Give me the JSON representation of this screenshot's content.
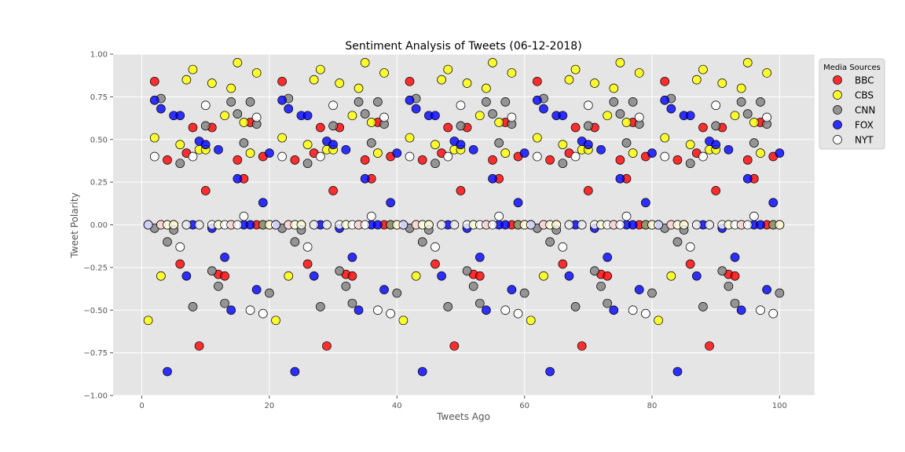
{
  "chart_data": {
    "type": "scatter",
    "title": "Sentiment Analysis of Tweets (06-12-2018)",
    "xlabel": "Tweets Ago",
    "ylabel": "Tweet Polarity",
    "xlim": [
      -4.5,
      105.5
    ],
    "ylim": [
      -1.0,
      1.0
    ],
    "xticks": [
      0,
      20,
      40,
      60,
      80,
      100
    ],
    "xtick_labels": [
      "0",
      "20",
      "40",
      "60",
      "80",
      "100"
    ],
    "yticks": [
      -1.0,
      -0.75,
      -0.5,
      -0.25,
      0.0,
      0.25,
      0.5,
      0.75,
      1.0
    ],
    "ytick_labels": [
      "−1.00",
      "−0.75",
      "−0.50",
      "−0.25",
      "0.00",
      "0.25",
      "0.50",
      "0.75",
      "1.00"
    ],
    "grid": true,
    "background": "#e5e5e5",
    "legend": {
      "title": "Media Sources",
      "position": "outside-top-right"
    },
    "series": [
      {
        "name": "BBC",
        "color": "#ff0000",
        "y": [
          0,
          0.84,
          0,
          0.38,
          0,
          -0.23,
          0.42,
          0.57,
          -0.71,
          0.2,
          0.57,
          -0.29,
          -0.3,
          0,
          0.38,
          0.27,
          0.6,
          0,
          0.4,
          0,
          0,
          0.84,
          0,
          0.38,
          0,
          -0.23,
          0.42,
          0.57,
          -0.71,
          0.2,
          0.57,
          -0.29,
          -0.3,
          0,
          0.38,
          0.27,
          0.6,
          0,
          0.4,
          0,
          0,
          0.84,
          0,
          0.38,
          0,
          -0.23,
          0.42,
          0.57,
          -0.71,
          0.2,
          0.57,
          -0.29,
          -0.3,
          0,
          0.38,
          0.27,
          0.6,
          0,
          0.4,
          0,
          0,
          0.84,
          0,
          0.38,
          0,
          -0.23,
          0.42,
          0.57,
          -0.71,
          0.2,
          0.57,
          -0.29,
          -0.3,
          0,
          0.38,
          0.27,
          0.6,
          0,
          0.4,
          0,
          0,
          0.84,
          0,
          0.38,
          0,
          -0.23,
          0.42,
          0.57,
          -0.71,
          0.2,
          0.57,
          -0.29,
          -0.3,
          0,
          0.38,
          0.27,
          0.6,
          0,
          0.4,
          0
        ]
      },
      {
        "name": "CBS",
        "color": "#ffff00",
        "y": [
          -0.56,
          0.51,
          -0.3,
          0,
          0,
          0.47,
          0.85,
          0.91,
          0.44,
          0.44,
          0.83,
          0,
          0.64,
          0.8,
          0.95,
          0.6,
          0.42,
          0.89,
          0,
          0,
          -0.56,
          0.51,
          -0.3,
          0,
          0,
          0.47,
          0.85,
          0.91,
          0.44,
          0.44,
          0.83,
          0,
          0.64,
          0.8,
          0.95,
          0.6,
          0.42,
          0.89,
          0,
          0,
          -0.56,
          0.51,
          -0.3,
          0,
          0,
          0.47,
          0.85,
          0.91,
          0.44,
          0.44,
          0.83,
          0,
          0.64,
          0.8,
          0.95,
          0.6,
          0.42,
          0.89,
          0,
          0,
          -0.56,
          0.51,
          -0.3,
          0,
          0,
          0.47,
          0.85,
          0.91,
          0.44,
          0.44,
          0.83,
          0,
          0.64,
          0.8,
          0.95,
          0.6,
          0.42,
          0.89,
          0,
          0,
          -0.56,
          0.51,
          -0.3,
          0,
          0,
          0.47,
          0.85,
          0.91,
          0.44,
          0.44,
          0.83,
          0,
          0.64,
          0.8,
          0.95,
          0.6,
          0.42,
          0.89,
          0,
          0
        ]
      },
      {
        "name": "CNN",
        "color": "#808080",
        "y": [
          0,
          -0.02,
          0.74,
          -0.1,
          -0.03,
          0.36,
          0,
          -0.48,
          0,
          0.58,
          -0.27,
          -0.36,
          -0.46,
          0.72,
          0.65,
          0.48,
          0.72,
          0.59,
          0,
          -0.4,
          0,
          -0.02,
          0.74,
          -0.1,
          -0.03,
          0.36,
          0,
          -0.48,
          0,
          0.58,
          -0.27,
          -0.36,
          -0.46,
          0.72,
          0.65,
          0.48,
          0.72,
          0.59,
          0,
          -0.4,
          0,
          -0.02,
          0.74,
          -0.1,
          -0.03,
          0.36,
          0,
          -0.48,
          0,
          0.58,
          -0.27,
          -0.36,
          -0.46,
          0.72,
          0.65,
          0.48,
          0.72,
          0.59,
          0,
          -0.4,
          0,
          -0.02,
          0.74,
          -0.1,
          -0.03,
          0.36,
          0,
          -0.48,
          0,
          0.58,
          -0.27,
          -0.36,
          -0.46,
          0.72,
          0.65,
          0.48,
          0.72,
          0.59,
          0,
          -0.4,
          0,
          -0.02,
          0.74,
          -0.1,
          -0.03,
          0.36,
          0,
          -0.48,
          0,
          0.58,
          -0.27,
          -0.36,
          -0.46,
          0.72,
          0.65,
          0.48,
          0.72,
          0.59,
          0,
          -0.4
        ]
      },
      {
        "name": "FOX",
        "color": "#0000ff",
        "y": [
          0,
          0.73,
          0.68,
          -0.86,
          0.64,
          0.64,
          -0.3,
          0,
          0.49,
          0.47,
          -0.02,
          0.44,
          -0.19,
          -0.5,
          0.27,
          0,
          0,
          -0.38,
          0.13,
          0.42,
          0,
          0.73,
          0.68,
          -0.86,
          0.64,
          0.64,
          -0.3,
          0,
          0.49,
          0.47,
          -0.02,
          0.44,
          -0.19,
          -0.5,
          0.27,
          0,
          0,
          -0.38,
          0.13,
          0.42,
          0,
          0.73,
          0.68,
          -0.86,
          0.64,
          0.64,
          -0.3,
          0,
          0.49,
          0.47,
          -0.02,
          0.44,
          -0.19,
          -0.5,
          0.27,
          0,
          0,
          -0.38,
          0.13,
          0.42,
          0,
          0.73,
          0.68,
          -0.86,
          0.64,
          0.64,
          -0.3,
          0,
          0.49,
          0.47,
          -0.02,
          0.44,
          -0.19,
          -0.5,
          0.27,
          0,
          0,
          -0.38,
          0.13,
          0.42,
          0,
          0.73,
          0.68,
          -0.86,
          0.64,
          0.64,
          -0.3,
          0,
          0.49,
          0.47,
          -0.02,
          0.44,
          -0.19,
          -0.5,
          0.27,
          0,
          0,
          -0.38,
          0.13,
          0.42
        ]
      },
      {
        "name": "NYT",
        "color": "#ffffff",
        "y": [
          0,
          0.4,
          0,
          0,
          0,
          -0.13,
          0,
          0.4,
          0,
          0.7,
          0,
          0,
          0,
          0,
          0,
          0.05,
          -0.5,
          0.63,
          -0.52,
          0,
          0,
          0.4,
          0,
          0,
          0,
          -0.13,
          0,
          0.4,
          0,
          0.7,
          0,
          0,
          0,
          0,
          0,
          0.05,
          -0.5,
          0.63,
          -0.52,
          0,
          0,
          0.4,
          0,
          0,
          0,
          -0.13,
          0,
          0.4,
          0,
          0.7,
          0,
          0,
          0,
          0,
          0,
          0.05,
          -0.5,
          0.63,
          -0.52,
          0,
          0,
          0.4,
          0,
          0,
          0,
          -0.13,
          0,
          0.4,
          0,
          0.7,
          0,
          0,
          0,
          0,
          0,
          0.05,
          -0.5,
          0.63,
          -0.52,
          0,
          0,
          0.4,
          0,
          0,
          0,
          -0.13,
          0,
          0.4,
          0,
          0.7,
          0,
          0,
          0,
          0,
          0,
          0.05,
          -0.5,
          0.63,
          -0.52,
          0
        ]
      }
    ]
  }
}
